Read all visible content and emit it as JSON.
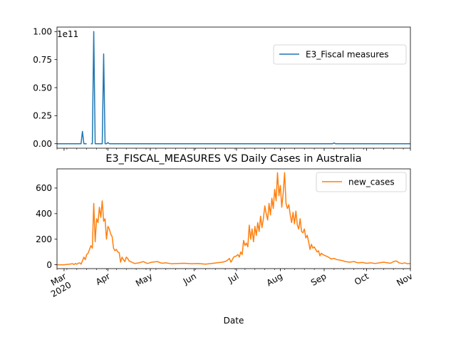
{
  "figure": {
    "title": "E3_FISCAL_MEASURES VS Daily Cases in Australia",
    "xlabel": "Date"
  },
  "chart_data": [
    {
      "type": "line",
      "title": "",
      "xlabel": "",
      "ylabel": "",
      "y_scale_label": "1e11",
      "ylim": [
        -0.04,
        1.04
      ],
      "yticks": [
        0.0,
        0.25,
        0.5,
        0.75,
        1.0
      ],
      "ytick_labels": [
        "0.00",
        "0.25",
        "0.50",
        "0.75",
        "1.00"
      ],
      "xlim": [
        "2020-02-25",
        "2020-11-01"
      ],
      "legend": "top-right",
      "grid": false,
      "series": [
        {
          "name": "E3_Fiscal measures",
          "color": "#1f77b4",
          "unit": "1e11",
          "points": [
            [
              "2020-02-25",
              0.0
            ],
            [
              "2020-03-13",
              0.0
            ],
            [
              "2020-03-14",
              0.11
            ],
            [
              "2020-03-15",
              0.0
            ],
            [
              "2020-03-17",
              0.0
            ],
            [
              "2020-03-17",
              null
            ],
            [
              "2020-03-20",
              0.0
            ],
            [
              "2020-03-21",
              0.0
            ],
            [
              "2020-03-22",
              1.0
            ],
            [
              "2020-03-23",
              0.0
            ],
            [
              "2020-03-28",
              0.0
            ],
            [
              "2020-03-29",
              0.8
            ],
            [
              "2020-03-30",
              0.0
            ],
            [
              "2020-03-31",
              0.0
            ],
            [
              "2020-04-01",
              0.01
            ],
            [
              "2020-04-02",
              0.0
            ],
            [
              "2020-09-07",
              0.0
            ],
            [
              "2020-09-08",
              0.007
            ],
            [
              "2020-09-09",
              0.0
            ],
            [
              "2020-11-01",
              0.0
            ]
          ]
        }
      ]
    },
    {
      "type": "line",
      "title": "E3_FISCAL_MEASURES VS Daily Cases in Australia",
      "xlabel": "Date",
      "ylabel": "",
      "ylim": [
        -30,
        750
      ],
      "yticks": [
        0,
        200,
        400,
        600
      ],
      "ytick_labels": [
        "0",
        "200",
        "400",
        "600"
      ],
      "xlim": [
        "2020-02-25",
        "2020-11-01"
      ],
      "xticks": [
        {
          "date": "2020-03-01",
          "label": "Mar\n2020"
        },
        {
          "date": "2020-04-01",
          "label": "Apr"
        },
        {
          "date": "2020-05-01",
          "label": "May"
        },
        {
          "date": "2020-06-01",
          "label": "Jun"
        },
        {
          "date": "2020-07-01",
          "label": "Jul"
        },
        {
          "date": "2020-08-01",
          "label": "Aug"
        },
        {
          "date": "2020-09-01",
          "label": "Sep"
        },
        {
          "date": "2020-10-01",
          "label": "Oct"
        },
        {
          "date": "2020-11-01",
          "label": "Nov"
        }
      ],
      "legend": "top-right",
      "grid": false,
      "series": [
        {
          "name": "new_cases",
          "color": "#ff7f0e",
          "points": [
            [
              "2020-02-25",
              0
            ],
            [
              "2020-03-01",
              0
            ],
            [
              "2020-03-03",
              3
            ],
            [
              "2020-03-05",
              5
            ],
            [
              "2020-03-07",
              8
            ],
            [
              "2020-03-08",
              2
            ],
            [
              "2020-03-09",
              10
            ],
            [
              "2020-03-10",
              4
            ],
            [
              "2020-03-11",
              12
            ],
            [
              "2020-03-12",
              15
            ],
            [
              "2020-03-13",
              5
            ],
            [
              "2020-03-14",
              30
            ],
            [
              "2020-03-15",
              60
            ],
            [
              "2020-03-16",
              40
            ],
            [
              "2020-03-17",
              80
            ],
            [
              "2020-03-18",
              90
            ],
            [
              "2020-03-19",
              120
            ],
            [
              "2020-03-20",
              150
            ],
            [
              "2020-03-21",
              130
            ],
            [
              "2020-03-22",
              480
            ],
            [
              "2020-03-23",
              180
            ],
            [
              "2020-03-24",
              360
            ],
            [
              "2020-03-25",
              330
            ],
            [
              "2020-03-26",
              450
            ],
            [
              "2020-03-27",
              370
            ],
            [
              "2020-03-28",
              500
            ],
            [
              "2020-03-29",
              340
            ],
            [
              "2020-03-30",
              360
            ],
            [
              "2020-03-31",
              200
            ],
            [
              "2020-04-01",
              300
            ],
            [
              "2020-04-02",
              280
            ],
            [
              "2020-04-03",
              240
            ],
            [
              "2020-04-04",
              220
            ],
            [
              "2020-04-05",
              130
            ],
            [
              "2020-04-06",
              110
            ],
            [
              "2020-04-07",
              120
            ],
            [
              "2020-04-08",
              100
            ],
            [
              "2020-04-09",
              95
            ],
            [
              "2020-04-10",
              20
            ],
            [
              "2020-04-11",
              60
            ],
            [
              "2020-04-12",
              40
            ],
            [
              "2020-04-13",
              25
            ],
            [
              "2020-04-14",
              60
            ],
            [
              "2020-04-15",
              50
            ],
            [
              "2020-04-16",
              30
            ],
            [
              "2020-04-18",
              20
            ],
            [
              "2020-04-20",
              10
            ],
            [
              "2020-04-23",
              15
            ],
            [
              "2020-04-26",
              25
            ],
            [
              "2020-04-29",
              10
            ],
            [
              "2020-05-02",
              20
            ],
            [
              "2020-05-06",
              25
            ],
            [
              "2020-05-09",
              12
            ],
            [
              "2020-05-12",
              15
            ],
            [
              "2020-05-16",
              8
            ],
            [
              "2020-05-20",
              10
            ],
            [
              "2020-05-25",
              12
            ],
            [
              "2020-05-30",
              8
            ],
            [
              "2020-06-04",
              10
            ],
            [
              "2020-06-09",
              5
            ],
            [
              "2020-06-13",
              10
            ],
            [
              "2020-06-17",
              15
            ],
            [
              "2020-06-21",
              20
            ],
            [
              "2020-06-24",
              30
            ],
            [
              "2020-06-26",
              50
            ],
            [
              "2020-06-27",
              20
            ],
            [
              "2020-06-29",
              60
            ],
            [
              "2020-07-01",
              70
            ],
            [
              "2020-07-02",
              80
            ],
            [
              "2020-07-03",
              60
            ],
            [
              "2020-07-04",
              100
            ],
            [
              "2020-07-05",
              80
            ],
            [
              "2020-07-06",
              190
            ],
            [
              "2020-07-07",
              150
            ],
            [
              "2020-07-08",
              170
            ],
            [
              "2020-07-09",
              140
            ],
            [
              "2020-07-10",
              310
            ],
            [
              "2020-07-11",
              200
            ],
            [
              "2020-07-12",
              280
            ],
            [
              "2020-07-13",
              180
            ],
            [
              "2020-07-14",
              300
            ],
            [
              "2020-07-15",
              230
            ],
            [
              "2020-07-16",
              330
            ],
            [
              "2020-07-17",
              260
            ],
            [
              "2020-07-18",
              380
            ],
            [
              "2020-07-19",
              290
            ],
            [
              "2020-07-20",
              360
            ],
            [
              "2020-07-21",
              460
            ],
            [
              "2020-07-22",
              400
            ],
            [
              "2020-07-23",
              350
            ],
            [
              "2020-07-24",
              480
            ],
            [
              "2020-07-25",
              390
            ],
            [
              "2020-07-26",
              520
            ],
            [
              "2020-07-27",
              440
            ],
            [
              "2020-07-28",
              590
            ],
            [
              "2020-07-29",
              500
            ],
            [
              "2020-07-30",
              720
            ],
            [
              "2020-07-31",
              540
            ],
            [
              "2020-08-01",
              620
            ],
            [
              "2020-08-02",
              450
            ],
            [
              "2020-08-03",
              560
            ],
            [
              "2020-08-04",
              720
            ],
            [
              "2020-08-05",
              480
            ],
            [
              "2020-08-06",
              440
            ],
            [
              "2020-08-07",
              470
            ],
            [
              "2020-08-08",
              390
            ],
            [
              "2020-08-09",
              330
            ],
            [
              "2020-08-10",
              410
            ],
            [
              "2020-08-11",
              320
            ],
            [
              "2020-08-12",
              420
            ],
            [
              "2020-08-13",
              310
            ],
            [
              "2020-08-14",
              280
            ],
            [
              "2020-08-15",
              360
            ],
            [
              "2020-08-16",
              260
            ],
            [
              "2020-08-17",
              250
            ],
            [
              "2020-08-18",
              280
            ],
            [
              "2020-08-19",
              210
            ],
            [
              "2020-08-20",
              230
            ],
            [
              "2020-08-21",
              180
            ],
            [
              "2020-08-22",
              120
            ],
            [
              "2020-08-23",
              160
            ],
            [
              "2020-08-24",
              130
            ],
            [
              "2020-08-25",
              140
            ],
            [
              "2020-08-26",
              120
            ],
            [
              "2020-08-27",
              100
            ],
            [
              "2020-08-28",
              110
            ],
            [
              "2020-08-29",
              70
            ],
            [
              "2020-08-30",
              90
            ],
            [
              "2020-08-31",
              80
            ],
            [
              "2020-09-02",
              70
            ],
            [
              "2020-09-04",
              60
            ],
            [
              "2020-09-06",
              45
            ],
            [
              "2020-09-08",
              50
            ],
            [
              "2020-09-10",
              40
            ],
            [
              "2020-09-13",
              35
            ],
            [
              "2020-09-16",
              25
            ],
            [
              "2020-09-19",
              20
            ],
            [
              "2020-09-22",
              25
            ],
            [
              "2020-09-25",
              15
            ],
            [
              "2020-09-28",
              18
            ],
            [
              "2020-10-01",
              12
            ],
            [
              "2020-10-04",
              15
            ],
            [
              "2020-10-07",
              10
            ],
            [
              "2020-10-10",
              15
            ],
            [
              "2020-10-13",
              20
            ],
            [
              "2020-10-16",
              15
            ],
            [
              "2020-10-18",
              12
            ],
            [
              "2020-10-20",
              25
            ],
            [
              "2020-10-22",
              30
            ],
            [
              "2020-10-24",
              15
            ],
            [
              "2020-10-26",
              10
            ],
            [
              "2020-10-28",
              15
            ],
            [
              "2020-10-30",
              8
            ],
            [
              "2020-11-01",
              10
            ]
          ]
        }
      ]
    }
  ]
}
